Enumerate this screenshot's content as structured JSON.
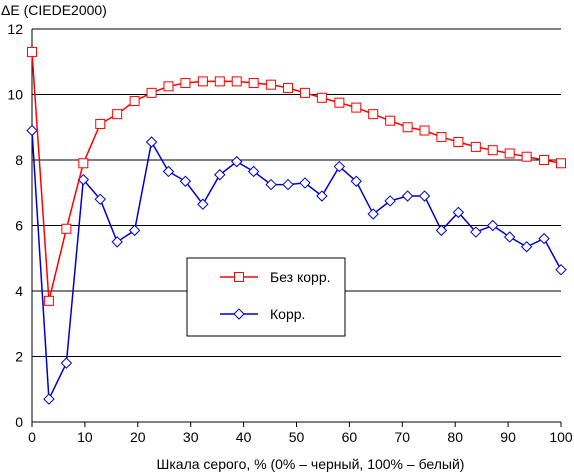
{
  "chart_data": {
    "type": "line",
    "ylabel": "ΔE (CIEDE2000)",
    "xlabel": "Шкала серого, % (0% – черный, 100% – белый)",
    "xlim": [
      0,
      100
    ],
    "ylim": [
      0,
      12
    ],
    "xticks": [
      0,
      10,
      20,
      30,
      40,
      50,
      60,
      70,
      80,
      90,
      100
    ],
    "yticks": [
      0,
      2,
      4,
      6,
      8,
      10,
      12
    ],
    "grid": "horizontal",
    "legend_position": "center-left",
    "x": [
      0,
      3.2,
      6.5,
      9.7,
      12.9,
      16.1,
      19.4,
      22.6,
      25.8,
      29.0,
      32.3,
      35.5,
      38.7,
      41.9,
      45.2,
      48.4,
      51.6,
      54.8,
      58.1,
      61.3,
      64.5,
      67.7,
      71.0,
      74.2,
      77.4,
      80.6,
      83.9,
      87.1,
      90.3,
      93.5,
      96.8,
      100
    ],
    "series": [
      {
        "name": "Без корр.",
        "color": "#ff0000",
        "marker": "square",
        "values": [
          11.3,
          3.7,
          5.9,
          7.9,
          9.1,
          9.4,
          9.8,
          10.05,
          10.25,
          10.35,
          10.4,
          10.4,
          10.4,
          10.35,
          10.3,
          10.2,
          10.05,
          9.9,
          9.75,
          9.6,
          9.4,
          9.2,
          9.0,
          8.9,
          8.7,
          8.55,
          8.4,
          8.3,
          8.2,
          8.1,
          8.0,
          7.9
        ]
      },
      {
        "name": "Корр.",
        "color": "#0000cc",
        "marker": "diamond",
        "values": [
          8.9,
          0.7,
          1.8,
          7.4,
          6.8,
          5.5,
          5.85,
          8.55,
          7.65,
          7.35,
          6.65,
          7.55,
          7.95,
          7.65,
          7.25,
          7.25,
          7.3,
          6.9,
          7.8,
          7.35,
          6.35,
          6.75,
          6.9,
          6.9,
          5.85,
          6.4,
          5.8,
          6.0,
          5.65,
          5.35,
          5.6,
          4.65
        ]
      }
    ]
  }
}
